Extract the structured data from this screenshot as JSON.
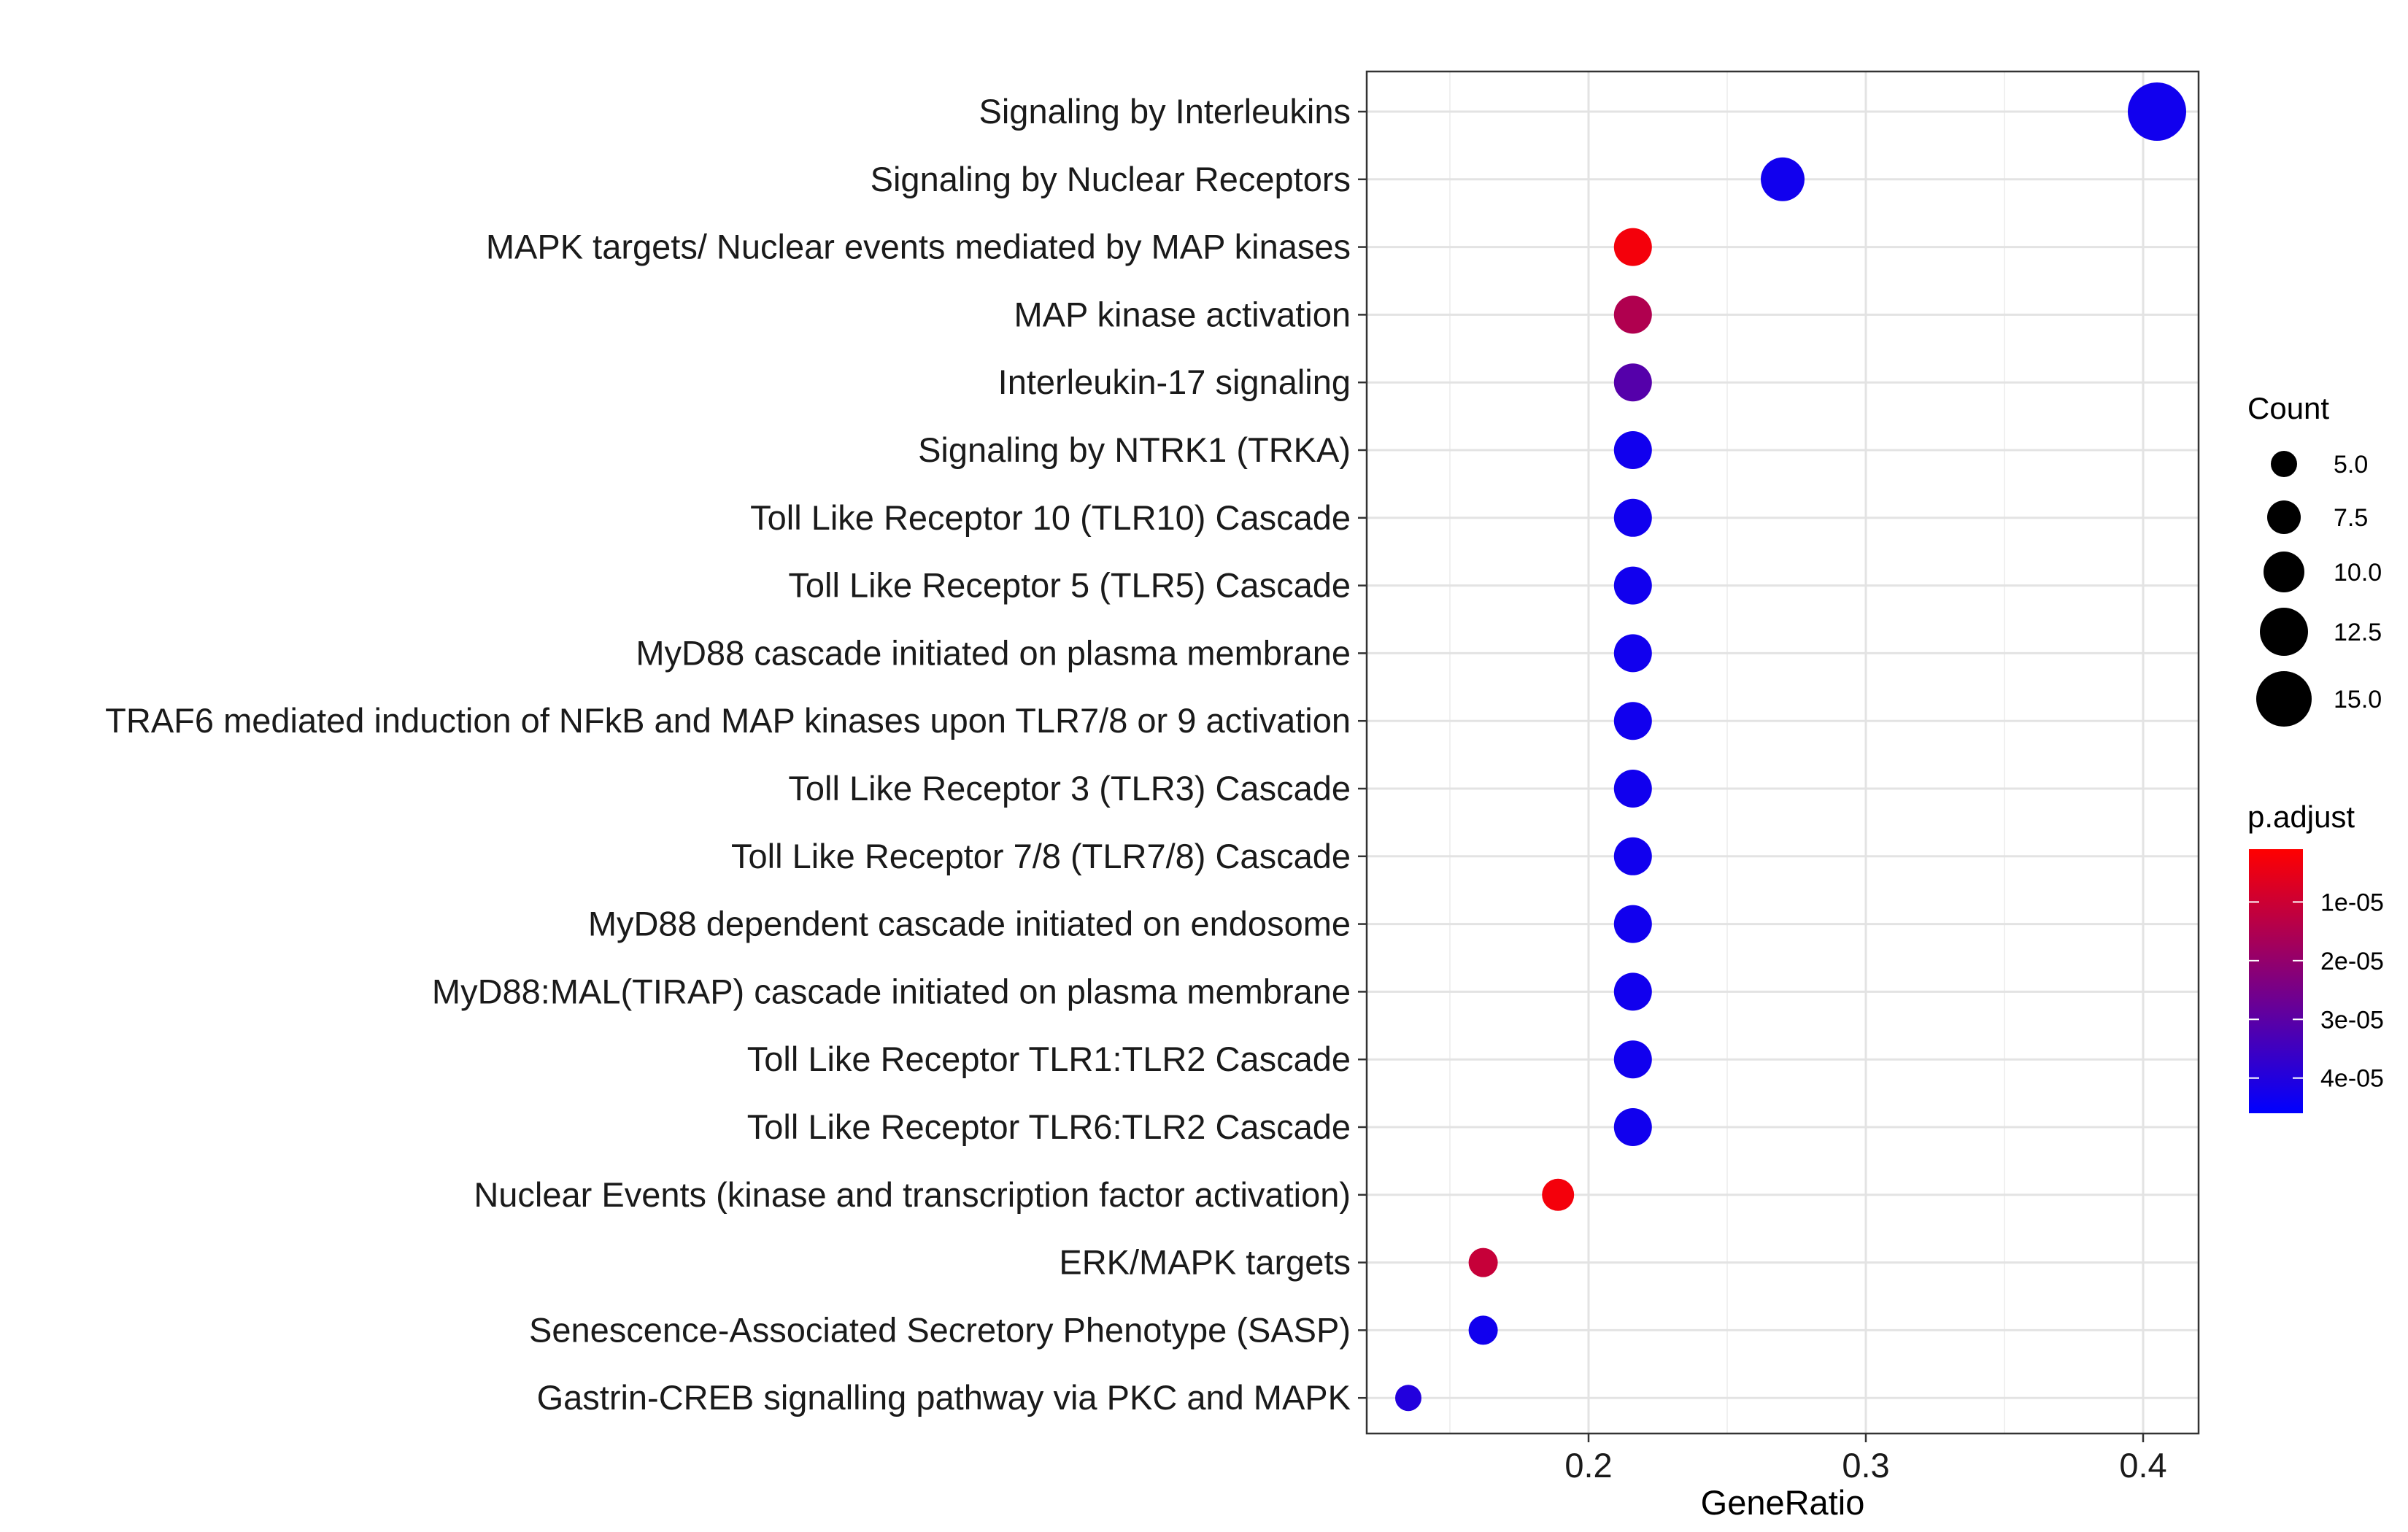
{
  "chart_data": {
    "type": "scatter",
    "title": "",
    "xlabel": "GeneRatio",
    "ylabel": "",
    "xlim": [
      0.12,
      0.42
    ],
    "x_ticks": [
      0.2,
      0.3,
      0.4
    ],
    "x_tick_labels": [
      "0.2",
      "0.3",
      "0.4"
    ],
    "grid": true,
    "terms": [
      {
        "label": "Signaling by Interleukins",
        "gene_ratio": 0.405,
        "count": 16,
        "p_adjust": 4.3e-05
      },
      {
        "label": "Signaling by Nuclear Receptors",
        "gene_ratio": 0.27,
        "count": 11,
        "p_adjust": 4.3e-05
      },
      {
        "label": "MAPK targets/ Nuclear events mediated by MAP kinases",
        "gene_ratio": 0.216,
        "count": 9,
        "p_adjust": 3e-06
      },
      {
        "label": "MAP kinase activation",
        "gene_ratio": 0.216,
        "count": 9,
        "p_adjust": 1.5e-05
      },
      {
        "label": "Interleukin-17 signaling",
        "gene_ratio": 0.216,
        "count": 9,
        "p_adjust": 3.1e-05
      },
      {
        "label": "Signaling by NTRK1 (TRKA)",
        "gene_ratio": 0.216,
        "count": 9,
        "p_adjust": 4.3e-05
      },
      {
        "label": "Toll Like Receptor 10 (TLR10) Cascade",
        "gene_ratio": 0.216,
        "count": 9,
        "p_adjust": 4.3e-05
      },
      {
        "label": "Toll Like Receptor 5 (TLR5) Cascade",
        "gene_ratio": 0.216,
        "count": 9,
        "p_adjust": 4.3e-05
      },
      {
        "label": "MyD88 cascade initiated on plasma membrane",
        "gene_ratio": 0.216,
        "count": 9,
        "p_adjust": 4.3e-05
      },
      {
        "label": "TRAF6 mediated induction of NFkB and MAP kinases upon TLR7/8 or 9 activation",
        "gene_ratio": 0.216,
        "count": 9,
        "p_adjust": 4.3e-05
      },
      {
        "label": "Toll Like Receptor 3 (TLR3) Cascade",
        "gene_ratio": 0.216,
        "count": 9,
        "p_adjust": 4.3e-05
      },
      {
        "label": "Toll Like Receptor 7/8 (TLR7/8) Cascade",
        "gene_ratio": 0.216,
        "count": 9,
        "p_adjust": 4.3e-05
      },
      {
        "label": "MyD88 dependent cascade initiated on endosome",
        "gene_ratio": 0.216,
        "count": 9,
        "p_adjust": 4.3e-05
      },
      {
        "label": "MyD88:MAL(TIRAP) cascade initiated on plasma membrane",
        "gene_ratio": 0.216,
        "count": 9,
        "p_adjust": 4.3e-05
      },
      {
        "label": "Toll Like Receptor TLR1:TLR2 Cascade",
        "gene_ratio": 0.216,
        "count": 9,
        "p_adjust": 4.3e-05
      },
      {
        "label": "Toll Like Receptor TLR6:TLR2 Cascade",
        "gene_ratio": 0.216,
        "count": 9,
        "p_adjust": 4.3e-05
      },
      {
        "label": "Nuclear Events (kinase and transcription factor activation)",
        "gene_ratio": 0.189,
        "count": 7,
        "p_adjust": 3e-06
      },
      {
        "label": "ERK/MAPK targets",
        "gene_ratio": 0.162,
        "count": 6,
        "p_adjust": 1.1e-05
      },
      {
        "label": "Senescence-Associated Secretory Phenotype (SASP)",
        "gene_ratio": 0.162,
        "count": 6,
        "p_adjust": 4.3e-05
      },
      {
        "label": "Gastrin-CREB signalling pathway via PKC and MAPK",
        "gene_ratio": 0.135,
        "count": 5,
        "p_adjust": 4e-05
      }
    ],
    "size_legend": {
      "title": "Count",
      "breaks": [
        5.0,
        7.5,
        10.0,
        12.5,
        15.0
      ],
      "labels": [
        "5.0",
        "7.5",
        "10.0",
        "12.5",
        "15.0"
      ]
    },
    "color_legend": {
      "title": "p.adjust",
      "range": [
        1e-06,
        4.6e-05
      ],
      "low_color": "#ff0000",
      "high_color": "#0000ff",
      "breaks": [
        1e-05,
        2e-05,
        3e-05,
        4e-05
      ],
      "labels": [
        "1e-05",
        "2e-05",
        "3e-05",
        "4e-05"
      ]
    },
    "legend_position": "right"
  }
}
